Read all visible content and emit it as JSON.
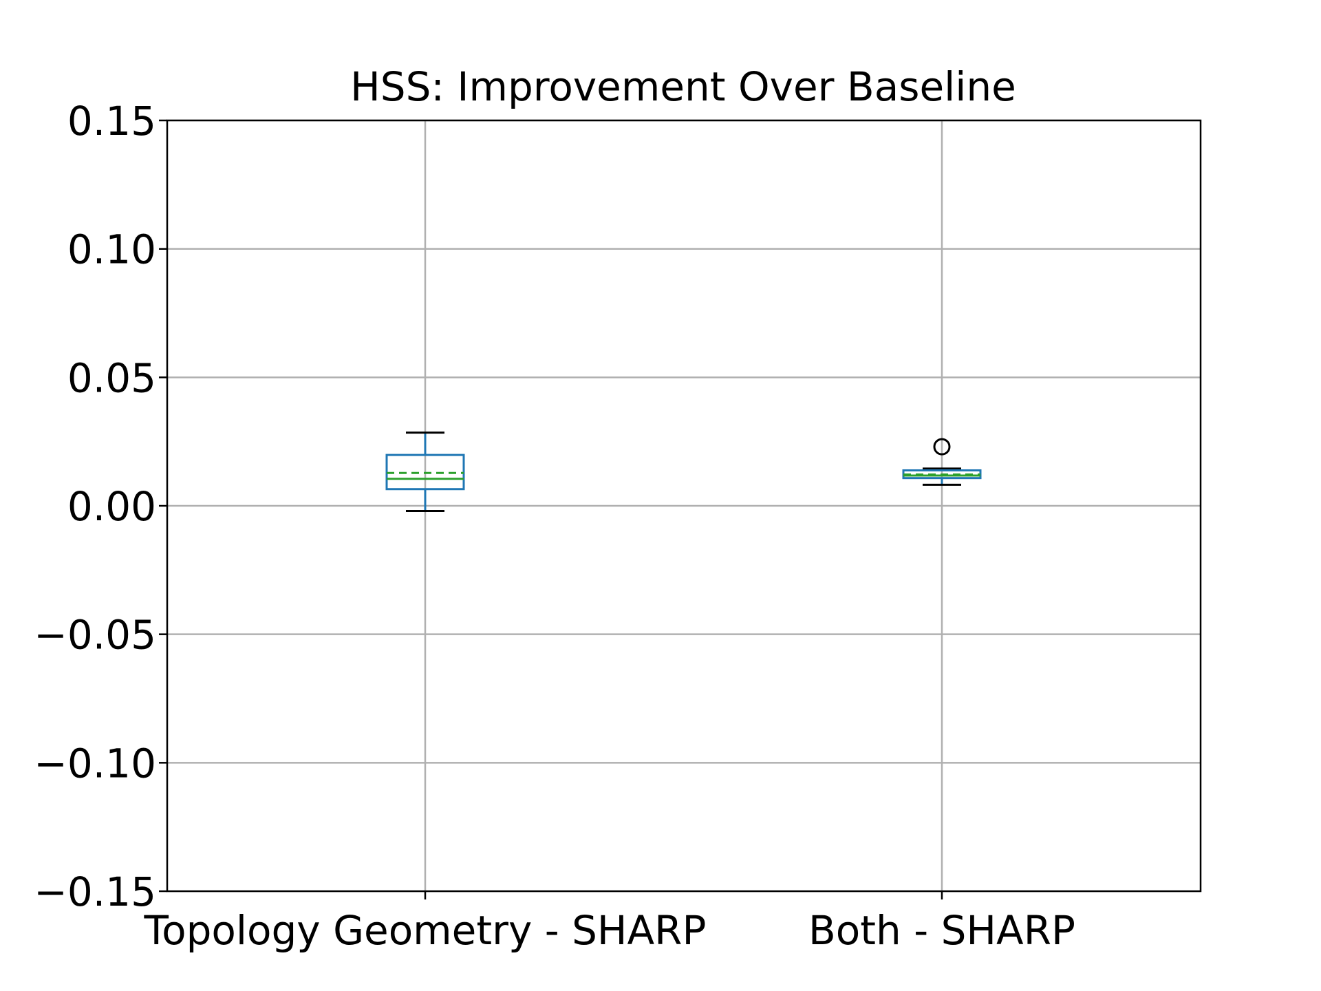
{
  "chart_data": {
    "type": "box",
    "title": "HSS: Improvement Over Baseline",
    "xlabel": "",
    "ylabel": "",
    "ylim": [
      -0.15,
      0.15
    ],
    "yticks": [
      -0.15,
      -0.1,
      -0.05,
      0.0,
      0.05,
      0.1,
      0.15
    ],
    "ytick_labels": [
      "−0.15",
      "−0.10",
      "−0.05",
      "0.00",
      "0.05",
      "0.10",
      "0.15"
    ],
    "grid": true,
    "show_means": true,
    "categories": [
      "Topology Geometry - SHARP",
      "Both - SHARP"
    ],
    "boxes": [
      {
        "label": "Topology Geometry - SHARP",
        "whisker_low": -0.002,
        "q1": 0.0065,
        "median": 0.0105,
        "mean": 0.0128,
        "q3": 0.0198,
        "whisker_high": 0.0285,
        "outliers": []
      },
      {
        "label": "Both - SHARP",
        "whisker_low": 0.0082,
        "q1": 0.0108,
        "median": 0.0118,
        "mean": 0.0122,
        "q3": 0.0138,
        "whisker_high": 0.0145,
        "outliers": [
          0.023
        ]
      }
    ],
    "colors": {
      "box": "#1f77b4",
      "median": "#2ca02c",
      "mean": "#2ca02c",
      "whisker_cap": "#000000",
      "outlier": "#000000"
    }
  }
}
